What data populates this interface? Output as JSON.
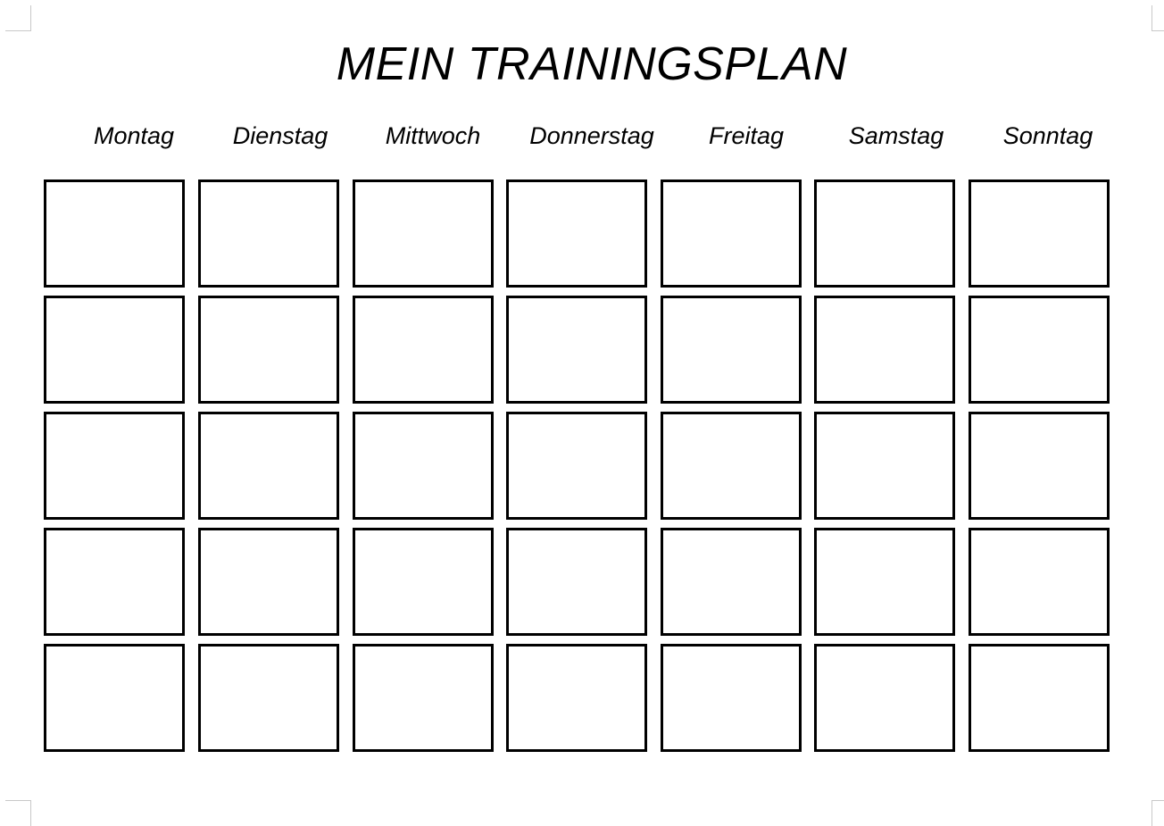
{
  "title": "MEIN TRAININGSPLAN",
  "days": [
    "Montag",
    "Dienstag",
    "Mittwoch",
    "Donnerstag",
    "Freitag",
    "Samstag",
    "Sonntag"
  ],
  "rows": 5
}
